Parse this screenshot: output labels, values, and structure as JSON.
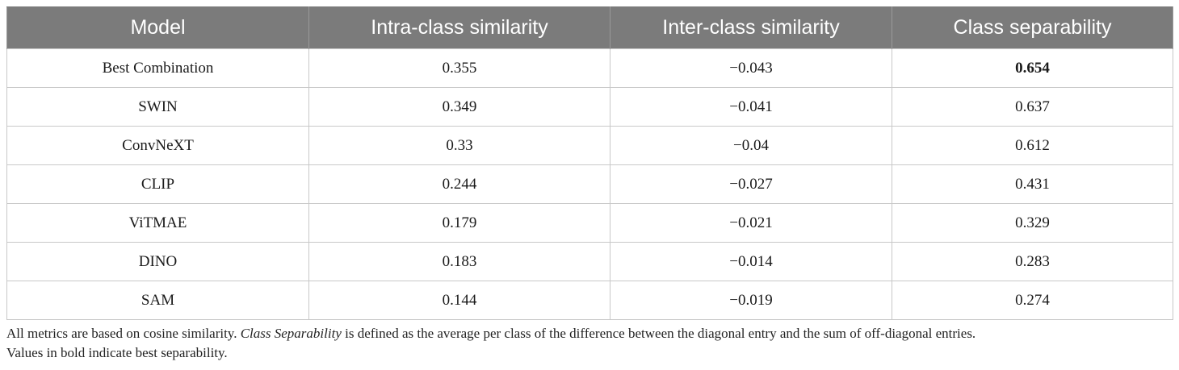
{
  "table": {
    "headers": [
      "Model",
      "Intra-class similarity",
      "Inter-class similarity",
      "Class separability"
    ],
    "rows": [
      {
        "model": "Best Combination",
        "intra": "0.355",
        "inter": "−0.043",
        "sep": "0.654",
        "sep_bold": true
      },
      {
        "model": "SWIN",
        "intra": "0.349",
        "inter": "−0.041",
        "sep": "0.637",
        "sep_bold": false
      },
      {
        "model": "ConvNeXT",
        "intra": "0.33",
        "inter": "−0.04",
        "sep": "0.612",
        "sep_bold": false
      },
      {
        "model": "CLIP",
        "intra": "0.244",
        "inter": "−0.027",
        "sep": "0.431",
        "sep_bold": false
      },
      {
        "model": "ViTMAE",
        "intra": "0.179",
        "inter": "−0.021",
        "sep": "0.329",
        "sep_bold": false
      },
      {
        "model": "DINO",
        "intra": "0.183",
        "inter": "−0.014",
        "sep": "0.283",
        "sep_bold": false
      },
      {
        "model": "SAM",
        "intra": "0.144",
        "inter": "−0.019",
        "sep": "0.274",
        "sep_bold": false
      }
    ]
  },
  "footnote": {
    "line1_pre": "All metrics are based on cosine similarity. ",
    "line1_italic": "Class Separability",
    "line1_post": " is defined as the average per class of the difference between the diagonal entry and the sum of off-diagonal entries.",
    "line2": "Values in bold indicate best separability."
  }
}
